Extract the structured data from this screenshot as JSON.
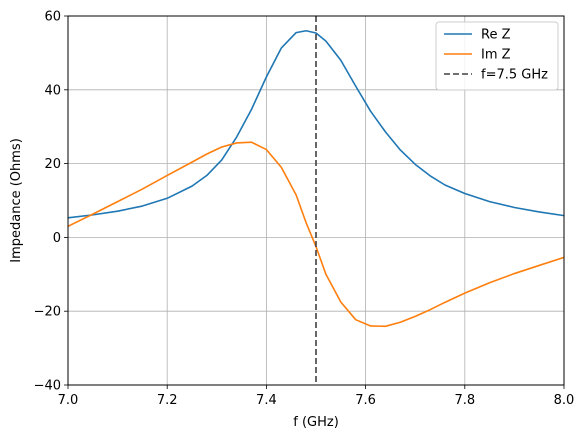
{
  "chart_data": {
    "type": "line",
    "xlabel": "f (GHz)",
    "ylabel": "Impedance (Ohms)",
    "xlim": [
      7.0,
      8.0
    ],
    "ylim": [
      -40,
      60
    ],
    "grid": true,
    "legend_position": "top-right",
    "x_ticks": [
      {
        "value": 7.0,
        "label": "7.0"
      },
      {
        "value": 7.2,
        "label": "7.2"
      },
      {
        "value": 7.4,
        "label": "7.4"
      },
      {
        "value": 7.6,
        "label": "7.6"
      },
      {
        "value": 7.8,
        "label": "7.8"
      },
      {
        "value": 8.0,
        "label": "8.0"
      }
    ],
    "y_ticks": [
      {
        "value": -40,
        "label": "−40"
      },
      {
        "value": -20,
        "label": "−20"
      },
      {
        "value": 0,
        "label": "0"
      },
      {
        "value": 20,
        "label": "20"
      },
      {
        "value": 40,
        "label": "40"
      },
      {
        "value": 60,
        "label": "60"
      }
    ],
    "series": [
      {
        "name": "Re Z",
        "color": "#1f77b4",
        "style": "solid",
        "points": [
          [
            7.0,
            5.3
          ],
          [
            7.05,
            6.1
          ],
          [
            7.1,
            7.1
          ],
          [
            7.15,
            8.5
          ],
          [
            7.2,
            10.6
          ],
          [
            7.25,
            13.9
          ],
          [
            7.28,
            16.8
          ],
          [
            7.31,
            21.0
          ],
          [
            7.34,
            27.2
          ],
          [
            7.37,
            34.7
          ],
          [
            7.4,
            43.5
          ],
          [
            7.43,
            51.3
          ],
          [
            7.46,
            55.5
          ],
          [
            7.48,
            56.0
          ],
          [
            7.5,
            55.4
          ],
          [
            7.52,
            53.2
          ],
          [
            7.55,
            48.0
          ],
          [
            7.58,
            41.0
          ],
          [
            7.61,
            34.2
          ],
          [
            7.64,
            28.6
          ],
          [
            7.67,
            23.7
          ],
          [
            7.7,
            19.8
          ],
          [
            7.73,
            16.7
          ],
          [
            7.76,
            14.2
          ],
          [
            7.8,
            11.9
          ],
          [
            7.85,
            9.7
          ],
          [
            7.9,
            8.1
          ],
          [
            7.95,
            6.9
          ],
          [
            8.0,
            5.9
          ]
        ]
      },
      {
        "name": "Im Z",
        "color": "#ff7f0e",
        "style": "solid",
        "points": [
          [
            7.0,
            3.0
          ],
          [
            7.05,
            6.3
          ],
          [
            7.1,
            9.7
          ],
          [
            7.15,
            13.1
          ],
          [
            7.2,
            16.8
          ],
          [
            7.25,
            20.4
          ],
          [
            7.28,
            22.6
          ],
          [
            7.31,
            24.5
          ],
          [
            7.34,
            25.6
          ],
          [
            7.37,
            25.8
          ],
          [
            7.4,
            23.8
          ],
          [
            7.43,
            19.0
          ],
          [
            7.46,
            11.5
          ],
          [
            7.48,
            4.0
          ],
          [
            7.5,
            -2.5
          ],
          [
            7.52,
            -10.0
          ],
          [
            7.55,
            -17.5
          ],
          [
            7.58,
            -22.3
          ],
          [
            7.61,
            -24.0
          ],
          [
            7.64,
            -24.1
          ],
          [
            7.67,
            -23.0
          ],
          [
            7.7,
            -21.4
          ],
          [
            7.73,
            -19.6
          ],
          [
            7.76,
            -17.6
          ],
          [
            7.8,
            -15.1
          ],
          [
            7.85,
            -12.3
          ],
          [
            7.9,
            -9.8
          ],
          [
            7.95,
            -7.6
          ],
          [
            8.0,
            -5.4
          ]
        ]
      }
    ],
    "vlines": [
      {
        "name": "f=7.5 GHz",
        "x": 7.5,
        "color": "#404040",
        "style": "dashed"
      }
    ]
  }
}
